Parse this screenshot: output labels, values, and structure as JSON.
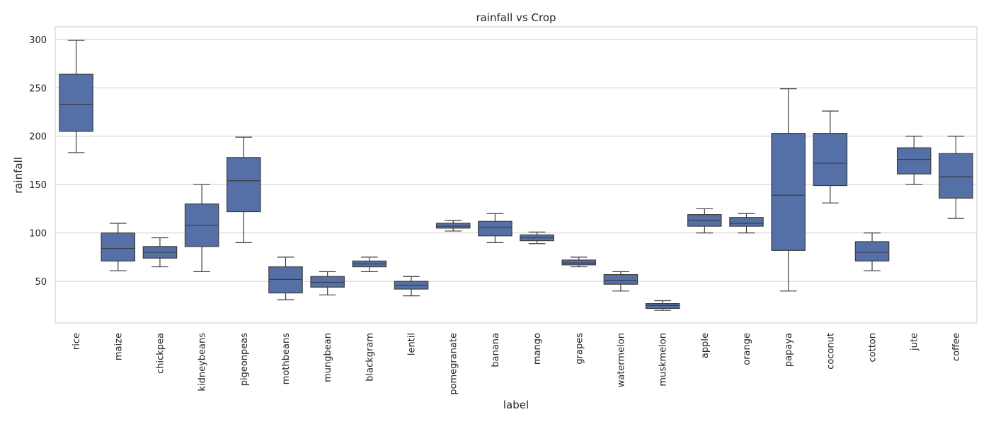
{
  "chart_data": {
    "type": "box",
    "title": "rainfall vs Crop",
    "xlabel": "label",
    "ylabel": "rainfall",
    "ylim": [
      7,
      313
    ],
    "yticks": [
      50,
      100,
      150,
      200,
      250,
      300
    ],
    "grid": true,
    "box_color": "#5470a6",
    "line_color": "#3d3d3d",
    "grid_color": "#d0d0d0",
    "categories": [
      "rice",
      "maize",
      "chickpea",
      "kidneybeans",
      "pigeonpeas",
      "mothbeans",
      "mungbean",
      "blackgram",
      "lentil",
      "pomegranate",
      "banana",
      "mango",
      "grapes",
      "watermelon",
      "muskmelon",
      "apple",
      "orange",
      "papaya",
      "coconut",
      "cotton",
      "jute",
      "coffee"
    ],
    "boxes": [
      {
        "min": 183,
        "q1": 205,
        "median": 233,
        "q3": 264,
        "max": 299
      },
      {
        "min": 61,
        "q1": 71,
        "median": 84,
        "q3": 100,
        "max": 110
      },
      {
        "min": 65,
        "q1": 74,
        "median": 80,
        "q3": 86,
        "max": 95
      },
      {
        "min": 60,
        "q1": 86,
        "median": 108,
        "q3": 130,
        "max": 150
      },
      {
        "min": 90,
        "q1": 122,
        "median": 154,
        "q3": 178,
        "max": 199
      },
      {
        "min": 31,
        "q1": 38,
        "median": 52,
        "q3": 65,
        "max": 75
      },
      {
        "min": 36,
        "q1": 44,
        "median": 49,
        "q3": 55,
        "max": 60
      },
      {
        "min": 60,
        "q1": 65,
        "median": 68,
        "q3": 71,
        "max": 75
      },
      {
        "min": 35,
        "q1": 42,
        "median": 46,
        "q3": 50,
        "max": 55
      },
      {
        "min": 102,
        "q1": 105,
        "median": 107,
        "q3": 110,
        "max": 113
      },
      {
        "min": 90,
        "q1": 97,
        "median": 106,
        "q3": 112,
        "max": 120
      },
      {
        "min": 89,
        "q1": 92,
        "median": 95,
        "q3": 98,
        "max": 101
      },
      {
        "min": 65,
        "q1": 67,
        "median": 69,
        "q3": 72,
        "max": 75
      },
      {
        "min": 40,
        "q1": 47,
        "median": 51,
        "q3": 57,
        "max": 60
      },
      {
        "min": 20,
        "q1": 22,
        "median": 25,
        "q3": 27,
        "max": 30
      },
      {
        "min": 100,
        "q1": 107,
        "median": 113,
        "q3": 119,
        "max": 125
      },
      {
        "min": 100,
        "q1": 107,
        "median": 110,
        "q3": 116,
        "max": 120
      },
      {
        "min": 40,
        "q1": 82,
        "median": 139,
        "q3": 203,
        "max": 249
      },
      {
        "min": 131,
        "q1": 149,
        "median": 172,
        "q3": 203,
        "max": 226
      },
      {
        "min": 61,
        "q1": 71,
        "median": 80,
        "q3": 91,
        "max": 100
      },
      {
        "min": 150,
        "q1": 161,
        "median": 176,
        "q3": 188,
        "max": 200
      },
      {
        "min": 115,
        "q1": 136,
        "median": 158,
        "q3": 182,
        "max": 200
      }
    ]
  }
}
